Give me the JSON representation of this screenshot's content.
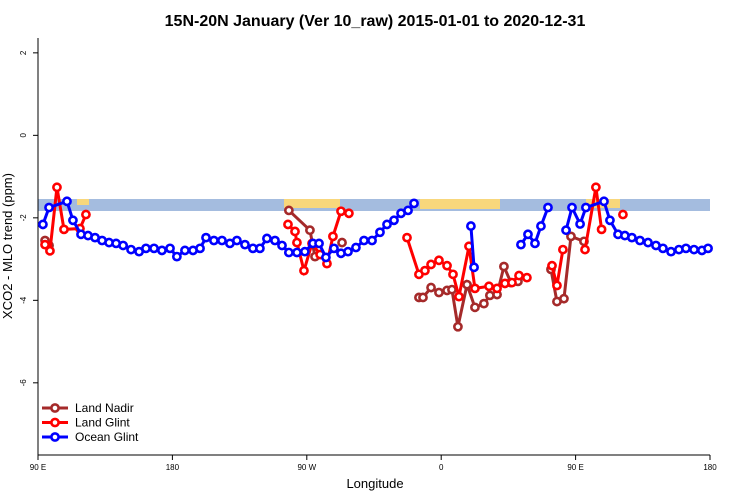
{
  "chart_data": {
    "type": "line",
    "title": "15N-20N January (Ver 10_raw)   2015-01-01 to 2020-12-31",
    "x_label": "Longitude",
    "y_label": "XCO2 - MLO trend (ppm)",
    "xlim": [
      90,
      540
    ],
    "ylim": [
      -7.75,
      2.36
    ],
    "xticks": [
      {
        "value": 90,
        "label": "90 E"
      },
      180,
      {
        "value": 270,
        "label": "90 W"
      },
      {
        "value": 360,
        "label": "0"
      },
      {
        "value": 450,
        "label": "90 E"
      },
      {
        "value": 540,
        "label": "180"
      }
    ],
    "yticks": [
      2,
      0,
      -2,
      -4,
      -6
    ],
    "legend": "bottom-left",
    "series": [
      {
        "name": "Land Nadir",
        "color": "#a52a2a",
        "x": [
          94.7,
          97.4,
          200,
          258,
          272.1,
          275.5,
          300,
          293.6,
          320,
          345.1,
          347.8,
          353.2,
          358.5,
          363.9,
          367.2,
          371.2,
          377.3,
          382.6,
          388.6,
          392.6,
          397.4,
          402,
          406.7,
          411.4,
          420,
          433.5,
          437.5,
          442.2,
          446.9,
          455.6
        ],
        "values": [
          -2.55,
          -2.67,
          null,
          -1.82,
          -2.3,
          -2.94,
          null,
          -2.6,
          null,
          -3.93,
          -3.93,
          -3.69,
          -3.81,
          -3.76,
          -3.74,
          -4.64,
          -3.62,
          -4.17,
          -4.08,
          -3.88,
          -3.86,
          -3.18,
          -3.57,
          -3.54,
          null,
          -3.25,
          -4.03,
          -3.96,
          -2.45,
          -2.57
        ]
      },
      {
        "name": "Land Glint",
        "color": "#ff0000",
        "x": [
          94.7,
          98,
          102.7,
          107.4,
          118.1,
          122.1,
          200,
          257.4,
          262.1,
          263.4,
          268.1,
          273.5,
          278.9,
          283.5,
          287.5,
          292.9,
          298.2,
          320,
          337.1,
          345.1,
          349.1,
          353.2,
          358.5,
          363.9,
          367.9,
          371.9,
          378.6,
          382.6,
          392,
          397.4,
          402.7,
          407.4,
          412.1,
          417.4,
          425,
          434.2,
          437.5,
          441.5,
          450,
          456.3,
          463.6,
          467.4,
          475,
          481.7
        ],
        "values": [
          -2.65,
          -2.8,
          -1.26,
          -2.28,
          -2.26,
          -1.92,
          null,
          -2.16,
          -2.33,
          -2.6,
          -3.28,
          -2.62,
          -2.89,
          -3.11,
          -2.45,
          -1.84,
          -1.89,
          null,
          -2.48,
          -3.37,
          -3.28,
          -3.13,
          -3.03,
          -3.16,
          -3.37,
          -3.91,
          -2.69,
          -3.71,
          -3.66,
          -3.71,
          -3.59,
          -3.57,
          -3.4,
          -3.45,
          null,
          -3.16,
          -3.64,
          -2.77,
          null,
          -2.77,
          -1.26,
          -2.28,
          null,
          -1.92
        ]
      },
      {
        "name": "Ocean Glint",
        "color": "#0000ff",
        "x": [
          93.3,
          97.4,
          109.4,
          113.4,
          118.8,
          123.5,
          128.2,
          132.9,
          137.6,
          142.3,
          147,
          152.3,
          157.7,
          162.3,
          167.7,
          173,
          178.4,
          183,
          188.4,
          193.8,
          198.5,
          202.5,
          207.8,
          213.2,
          218.5,
          223.2,
          228.6,
          233.9,
          238.6,
          243.3,
          248.7,
          253.4,
          258,
          263.4,
          268.7,
          274.1,
          278.2,
          282.8,
          288.2,
          292.9,
          297.6,
          302.9,
          308.3,
          313.7,
          319,
          323.7,
          328.4,
          333.1,
          337.8,
          341.8,
          360,
          379.9,
          382,
          400,
          413.4,
          418.1,
          422.8,
          426.8,
          431.5,
          438,
          443.6,
          447.6,
          453,
          456.9,
          469,
          473,
          478.4,
          483,
          487.7,
          493.1,
          498.5,
          503.8,
          508.5,
          513.9,
          519.2,
          523.9,
          529.3,
          534.6,
          538.7
        ],
        "values": [
          -2.16,
          -1.75,
          -1.6,
          -2.06,
          -2.4,
          -2.43,
          -2.48,
          -2.55,
          -2.6,
          -2.62,
          -2.67,
          -2.77,
          -2.82,
          -2.74,
          -2.74,
          -2.79,
          -2.74,
          -2.94,
          -2.79,
          -2.79,
          -2.74,
          -2.48,
          -2.55,
          -2.55,
          -2.62,
          -2.55,
          -2.65,
          -2.74,
          -2.74,
          -2.5,
          -2.55,
          -2.67,
          -2.84,
          -2.84,
          -2.82,
          -2.62,
          -2.62,
          -2.96,
          -2.74,
          -2.86,
          -2.82,
          -2.72,
          -2.55,
          -2.55,
          -2.35,
          -2.16,
          -2.06,
          -1.89,
          -1.82,
          -1.65,
          null,
          -2.2,
          -3.2,
          null,
          -2.65,
          -2.4,
          -2.62,
          -2.2,
          -1.75,
          null,
          -2.3,
          -1.75,
          -2.15,
          -1.75,
          -1.6,
          -2.06,
          -2.4,
          -2.43,
          -2.48,
          -2.55,
          -2.6,
          -2.67,
          -2.74,
          -2.82,
          -2.77,
          -2.74,
          -2.77,
          -2.79,
          -2.74
        ]
      }
    ]
  }
}
